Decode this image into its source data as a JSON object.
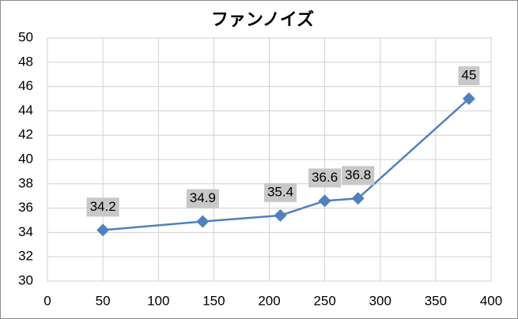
{
  "chart_data": {
    "type": "line",
    "title": "ファンノイズ",
    "x": [
      50,
      140,
      210,
      250,
      280,
      380
    ],
    "series": [
      {
        "color": "#4f81bd",
        "values": [
          34.2,
          34.9,
          35.4,
          36.6,
          36.8,
          45
        ]
      }
    ],
    "xlim": [
      0,
      400
    ],
    "xticks": [
      0,
      50,
      100,
      150,
      200,
      250,
      300,
      350,
      400
    ],
    "ylim": [
      30,
      50
    ],
    "yticks": [
      30,
      32,
      34,
      36,
      38,
      40,
      42,
      44,
      46,
      48,
      50
    ],
    "grid": true,
    "label_box_color": "#c8c8c8"
  }
}
